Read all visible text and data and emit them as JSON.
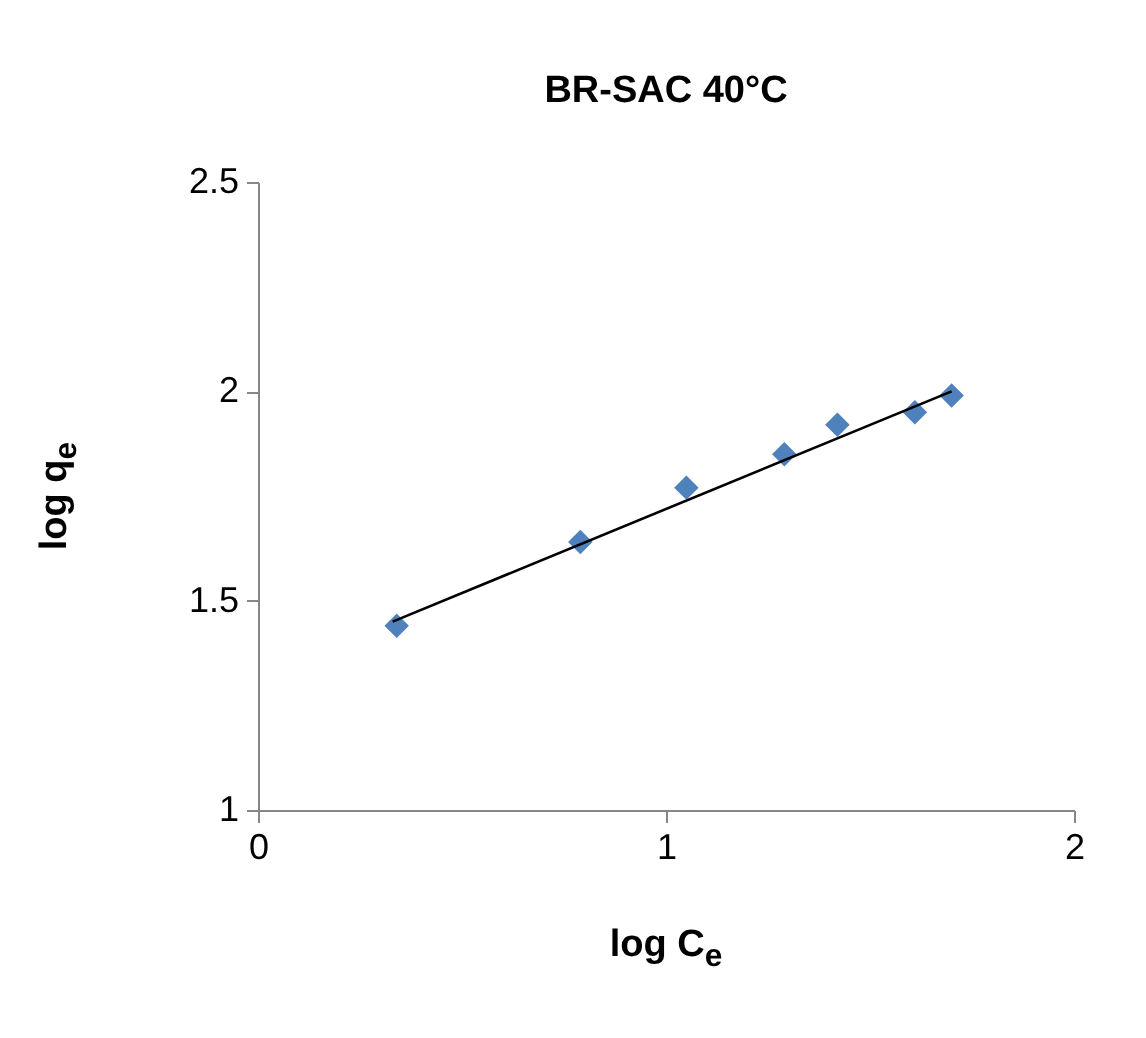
{
  "chart_data": {
    "type": "scatter",
    "title": "BR-SAC 40°C",
    "xlabel": "log C$_{e}$",
    "ylabel": "log q$_{e}$",
    "xlim": [
      0,
      2
    ],
    "xticks": [
      0,
      1,
      2
    ],
    "ylim": [
      1,
      2.5
    ],
    "yticks": [
      1,
      1.5,
      2,
      2.5
    ],
    "grid": false,
    "marker": "diamond",
    "series": [
      {
        "color": "#4f81bd",
        "x": [
          0.34,
          0.79,
          1.05,
          1.29,
          1.42,
          1.61,
          1.7
        ],
        "values": [
          1.44,
          1.64,
          1.77,
          1.85,
          1.92,
          1.95,
          1.99
        ]
      },
      {
        "type": "line",
        "color": "#000000",
        "line_style": "solid",
        "marker": "none",
        "x": [
          0.33,
          1.7
        ],
        "values": [
          1.45,
          2.0
        ]
      }
    ]
  }
}
